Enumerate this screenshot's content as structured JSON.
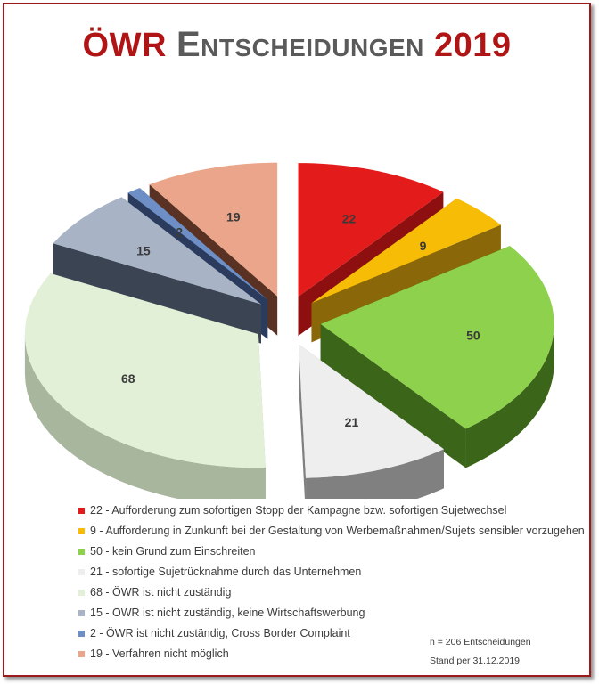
{
  "title": {
    "part_a": "ÖWR",
    "part_b": "Entscheidungen",
    "part_c": "2019"
  },
  "chart_data": {
    "type": "pie",
    "style": "3d-exploded",
    "total": 206,
    "slices": [
      {
        "value": 22,
        "label": "22",
        "legend": "22 - Aufforderung zum sofortigen Stopp der Kampagne bzw. sofortigen Sujetwechsel",
        "color": "#e31b1b",
        "side": "#8e0f0f"
      },
      {
        "value": 9,
        "label": "9",
        "legend": "9 - Aufforderung in Zunkunft bei der Gestaltung von Werbemaßnahmen/Sujets sensibler vorzugehen",
        "color": "#f6bc06",
        "side": "#8a6708"
      },
      {
        "value": 50,
        "label": "50",
        "legend": "50 - kein Grund zum Einschreiten",
        "color": "#8dd14d",
        "side": "#3b6619"
      },
      {
        "value": 21,
        "label": "21",
        "legend": "21 - sofortige Sujetrücknahme durch das Unternehmen",
        "color": "#eeeeee",
        "side": "#808080"
      },
      {
        "value": 68,
        "label": "68",
        "legend": "68 - ÖWR ist nicht zuständig",
        "color": "#e1f0d6",
        "side": "#a9b69e"
      },
      {
        "value": 15,
        "label": "15",
        "legend": "15 - ÖWR ist nicht zuständig, keine Wirtschaftswerbung",
        "color": "#a8b4c6",
        "side": "#3b4453"
      },
      {
        "value": 2,
        "label": "2",
        "legend": "2 - ÖWR ist nicht zuständig, Cross Border Complaint",
        "color": "#6e8fc6",
        "side": "#2a3b5e"
      },
      {
        "value": 19,
        "label": "19",
        "legend": "19 - Verfahren nicht möglich",
        "color": "#eaa58a",
        "side": "#5a3223"
      }
    ],
    "legend_position": "bottom",
    "note": {
      "n": "n = 206  Entscheidungen",
      "stand": "Stand per 31.12.2019"
    }
  }
}
